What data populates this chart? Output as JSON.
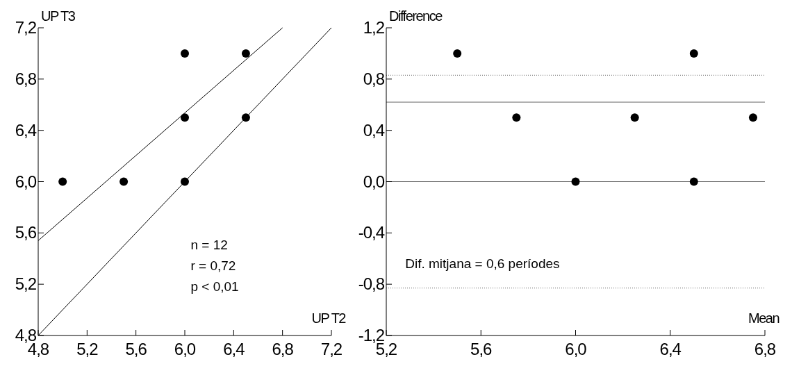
{
  "chart_data": [
    {
      "type": "scatter",
      "xlabel": "UP T2",
      "ylabel": "UP T3",
      "xlim": [
        4.8,
        7.2
      ],
      "ylim": [
        4.8,
        7.2
      ],
      "xticks": [
        {
          "value": 4.8,
          "label": "4,8"
        },
        {
          "value": 5.2,
          "label": "5,2"
        },
        {
          "value": 5.6,
          "label": "5,6"
        },
        {
          "value": 6.0,
          "label": "6,0"
        },
        {
          "value": 6.4,
          "label": "6,4"
        },
        {
          "value": 6.8,
          "label": "6,8"
        },
        {
          "value": 7.2,
          "label": "7,2"
        }
      ],
      "yticks": [
        {
          "value": 4.8,
          "label": "4,8"
        },
        {
          "value": 5.2,
          "label": "5,2"
        },
        {
          "value": 5.6,
          "label": "5,6"
        },
        {
          "value": 6.0,
          "label": "6,0"
        },
        {
          "value": 6.4,
          "label": "6,4"
        },
        {
          "value": 6.8,
          "label": "6,8"
        },
        {
          "value": 7.2,
          "label": "7,2"
        }
      ],
      "grid": false,
      "series": [
        {
          "marker": "circle",
          "color": "#000000",
          "x": [
            5.0,
            5.5,
            6.0,
            6.0,
            6.0,
            6.5,
            6.5
          ],
          "values": [
            6.0,
            6.0,
            7.0,
            6.5,
            6.0,
            7.0,
            6.5
          ]
        },
        {
          "type": "line",
          "color": "#000000",
          "x": [
            4.8,
            6.8
          ],
          "values": [
            5.54,
            7.2
          ]
        },
        {
          "type": "line",
          "color": "#000000",
          "x": [
            4.8,
            7.2
          ],
          "values": [
            4.8,
            7.2
          ]
        }
      ],
      "annotations": [
        "n = 12",
        "r = 0,72",
        "p < 0,01"
      ]
    },
    {
      "type": "scatter",
      "xlabel": "Mean",
      "ylabel": "Difference",
      "xlim": [
        5.2,
        6.8
      ],
      "ylim": [
        -1.2,
        1.2
      ],
      "xticks": [
        {
          "value": 5.2,
          "label": "5,2"
        },
        {
          "value": 5.6,
          "label": "5,6"
        },
        {
          "value": 6.0,
          "label": "6,0"
        },
        {
          "value": 6.4,
          "label": "6,4"
        },
        {
          "value": 6.8,
          "label": "6,8"
        }
      ],
      "yticks": [
        {
          "value": -1.2,
          "label": "-1,2"
        },
        {
          "value": -0.8,
          "label": "-0,8"
        },
        {
          "value": -0.4,
          "label": "-0,4"
        },
        {
          "value": 0.0,
          "label": "0,0"
        },
        {
          "value": 0.4,
          "label": "0,4"
        },
        {
          "value": 0.8,
          "label": "0,8"
        },
        {
          "value": 1.2,
          "label": "1,2"
        }
      ],
      "grid": false,
      "series": [
        {
          "marker": "circle",
          "color": "#000000",
          "x": [
            5.5,
            5.75,
            6.0,
            6.25,
            6.5,
            6.5,
            6.75
          ],
          "values": [
            1.0,
            0.5,
            0.0,
            0.5,
            1.0,
            0.0,
            0.5
          ]
        }
      ],
      "ref_lines": [
        {
          "axis": "y",
          "value": 0,
          "color": "#666666",
          "line_style": "solid"
        },
        {
          "axis": "y",
          "value": 0.62,
          "color": "#666666",
          "line_style": "solid"
        },
        {
          "axis": "y",
          "value": 0.83,
          "color": "#666666",
          "line_style": "dotted"
        },
        {
          "axis": "y",
          "value": -0.83,
          "color": "#666666",
          "line_style": "dotted"
        }
      ],
      "annotations": [
        "Dif. mitjana = 0,6 períodes"
      ]
    }
  ]
}
